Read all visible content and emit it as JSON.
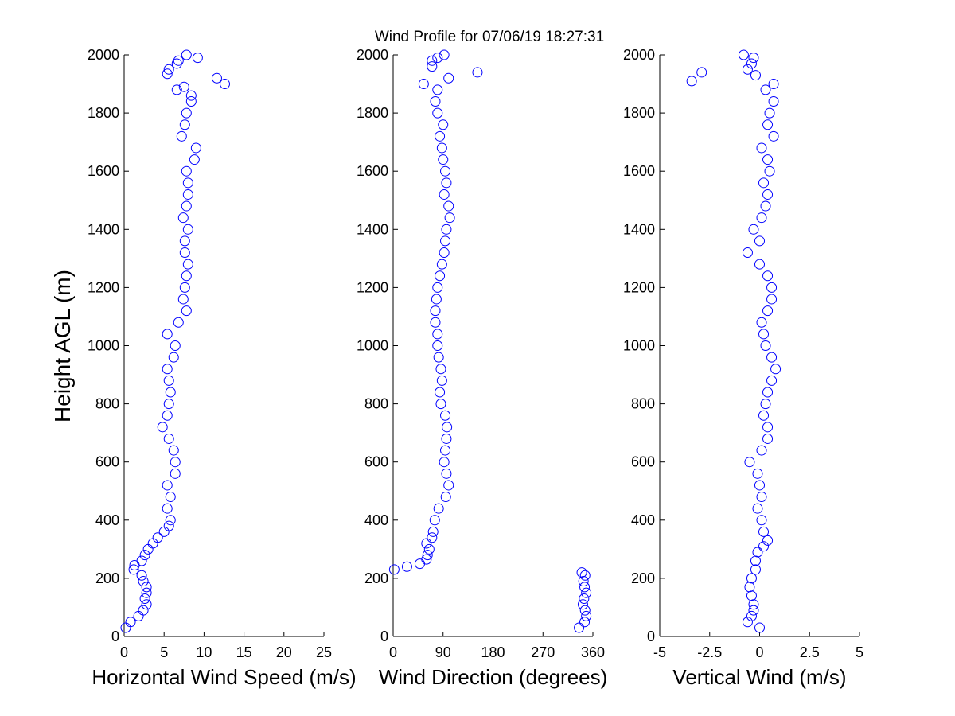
{
  "chart_data": [
    {
      "type": "scatter",
      "title": "Wind Profile for  07/06/19 18:27:31",
      "xlabel": "Horizontal Wind Speed (m/s)",
      "ylabel": "Height AGL (m)",
      "color": "#0000ff",
      "x": [
        0.2,
        0.8,
        1.8,
        2.4,
        2.8,
        2.6,
        2.8,
        2.8,
        2.4,
        2.2,
        1.2,
        1.3,
        2.2,
        2.6,
        3.0,
        3.6,
        4.2,
        5.0,
        5.6,
        5.8,
        5.4,
        5.8,
        5.4,
        6.4,
        6.4,
        6.2,
        5.6,
        4.8,
        5.4,
        5.6,
        5.8,
        5.6,
        5.4,
        6.2,
        6.4,
        5.4,
        6.8,
        7.8,
        7.4,
        7.6,
        7.8,
        8.0,
        7.6,
        7.6,
        8.0,
        7.4,
        7.8,
        8.0,
        8.0,
        7.8,
        8.8,
        9.0,
        7.2,
        7.6,
        7.8,
        8.4,
        8.4,
        6.6,
        7.5,
        12.6,
        11.6,
        5.4,
        5.6,
        6.6,
        6.8,
        9.2,
        7.8
      ],
      "values": [
        30,
        50,
        70,
        90,
        110,
        130,
        150,
        170,
        190,
        210,
        230,
        245,
        260,
        280,
        300,
        320,
        340,
        360,
        380,
        400,
        440,
        480,
        520,
        560,
        600,
        640,
        680,
        720,
        760,
        800,
        840,
        880,
        920,
        960,
        1000,
        1040,
        1080,
        1120,
        1160,
        1200,
        1240,
        1280,
        1320,
        1360,
        1400,
        1440,
        1480,
        1520,
        1560,
        1600,
        1640,
        1680,
        1720,
        1760,
        1800,
        1840,
        1860,
        1880,
        1890,
        1900,
        1920,
        1935,
        1950,
        1970,
        1980,
        1990,
        2000
      ],
      "xlim": [
        0,
        25
      ],
      "xticks": [
        0,
        5,
        10,
        15,
        20,
        25
      ],
      "ylim": [
        0,
        2000
      ],
      "yticks": [
        0,
        200,
        400,
        600,
        800,
        1000,
        1200,
        1400,
        1600,
        1800,
        2000
      ]
    },
    {
      "type": "scatter",
      "xlabel": "Wind Direction (degrees)",
      "color": "#0000ff",
      "x": [
        335,
        345,
        348,
        346,
        342,
        344,
        348,
        345,
        343,
        346,
        340,
        2,
        25,
        48,
        60,
        62,
        65,
        60,
        70,
        72,
        75,
        82,
        95,
        100,
        96,
        92,
        94,
        96,
        97,
        94,
        86,
        84,
        88,
        86,
        82,
        80,
        80,
        76,
        76,
        78,
        80,
        84,
        88,
        92,
        94,
        96,
        102,
        100,
        92,
        96,
        94,
        90,
        88,
        84,
        90,
        80,
        76,
        80,
        55,
        100,
        152,
        70,
        70,
        80,
        92
      ],
      "values": [
        30,
        50,
        70,
        90,
        110,
        130,
        150,
        170,
        190,
        210,
        220,
        230,
        240,
        250,
        265,
        280,
        300,
        320,
        340,
        360,
        400,
        440,
        480,
        520,
        560,
        600,
        640,
        680,
        720,
        760,
        800,
        840,
        880,
        920,
        960,
        1000,
        1040,
        1080,
        1120,
        1160,
        1200,
        1240,
        1280,
        1320,
        1360,
        1400,
        1440,
        1480,
        1520,
        1560,
        1600,
        1640,
        1680,
        1720,
        1760,
        1800,
        1840,
        1880,
        1900,
        1920,
        1940,
        1960,
        1980,
        1990,
        2000
      ],
      "xlim": [
        0,
        360
      ],
      "xticks": [
        0,
        90,
        180,
        270,
        360
      ],
      "ylim": [
        0,
        2000
      ],
      "yticks": [
        0,
        200,
        400,
        600,
        800,
        1000,
        1200,
        1400,
        1600,
        1800,
        2000
      ]
    },
    {
      "type": "scatter",
      "xlabel": "Vertical Wind (m/s)",
      "color": "#0000ff",
      "x": [
        0,
        -0.6,
        -0.4,
        -0.3,
        -0.3,
        -0.4,
        -0.5,
        -0.4,
        -0.2,
        -0.2,
        -0.1,
        0.2,
        0.4,
        0.2,
        0.1,
        -0.1,
        0.1,
        0,
        -0.1,
        -0.5,
        0.1,
        0.4,
        0.4,
        0.2,
        0.3,
        0.4,
        0.6,
        0.8,
        0.6,
        0.3,
        0.2,
        0.1,
        0.4,
        0.6,
        0.6,
        0.4,
        0,
        -0.6,
        0,
        -0.3,
        0.1,
        0.3,
        0.4,
        0.2,
        0.5,
        0.4,
        0.1,
        0.7,
        0.4,
        0.5,
        0.7,
        0.3,
        0.7,
        -3.4,
        -0.2,
        -2.9,
        -0.6,
        -0.4,
        -0.3,
        -0.8
      ],
      "values": [
        30,
        50,
        70,
        90,
        110,
        140,
        170,
        200,
        230,
        260,
        290,
        310,
        330,
        360,
        400,
        440,
        480,
        520,
        560,
        600,
        640,
        680,
        720,
        760,
        800,
        840,
        880,
        920,
        960,
        1000,
        1040,
        1080,
        1120,
        1160,
        1200,
        1240,
        1280,
        1320,
        1360,
        1400,
        1440,
        1480,
        1520,
        1560,
        1600,
        1640,
        1680,
        1720,
        1760,
        1800,
        1840,
        1880,
        1900,
        1910,
        1930,
        1940,
        1950,
        1970,
        1990,
        2000
      ],
      "xlim": [
        -5,
        5
      ],
      "xticks": [
        -5,
        -2.5,
        0,
        2.5,
        5
      ],
      "ylim": [
        0,
        2000
      ],
      "yticks": [
        0,
        200,
        400,
        600,
        800,
        1000,
        1200,
        1400,
        1600,
        1800,
        2000
      ]
    }
  ]
}
